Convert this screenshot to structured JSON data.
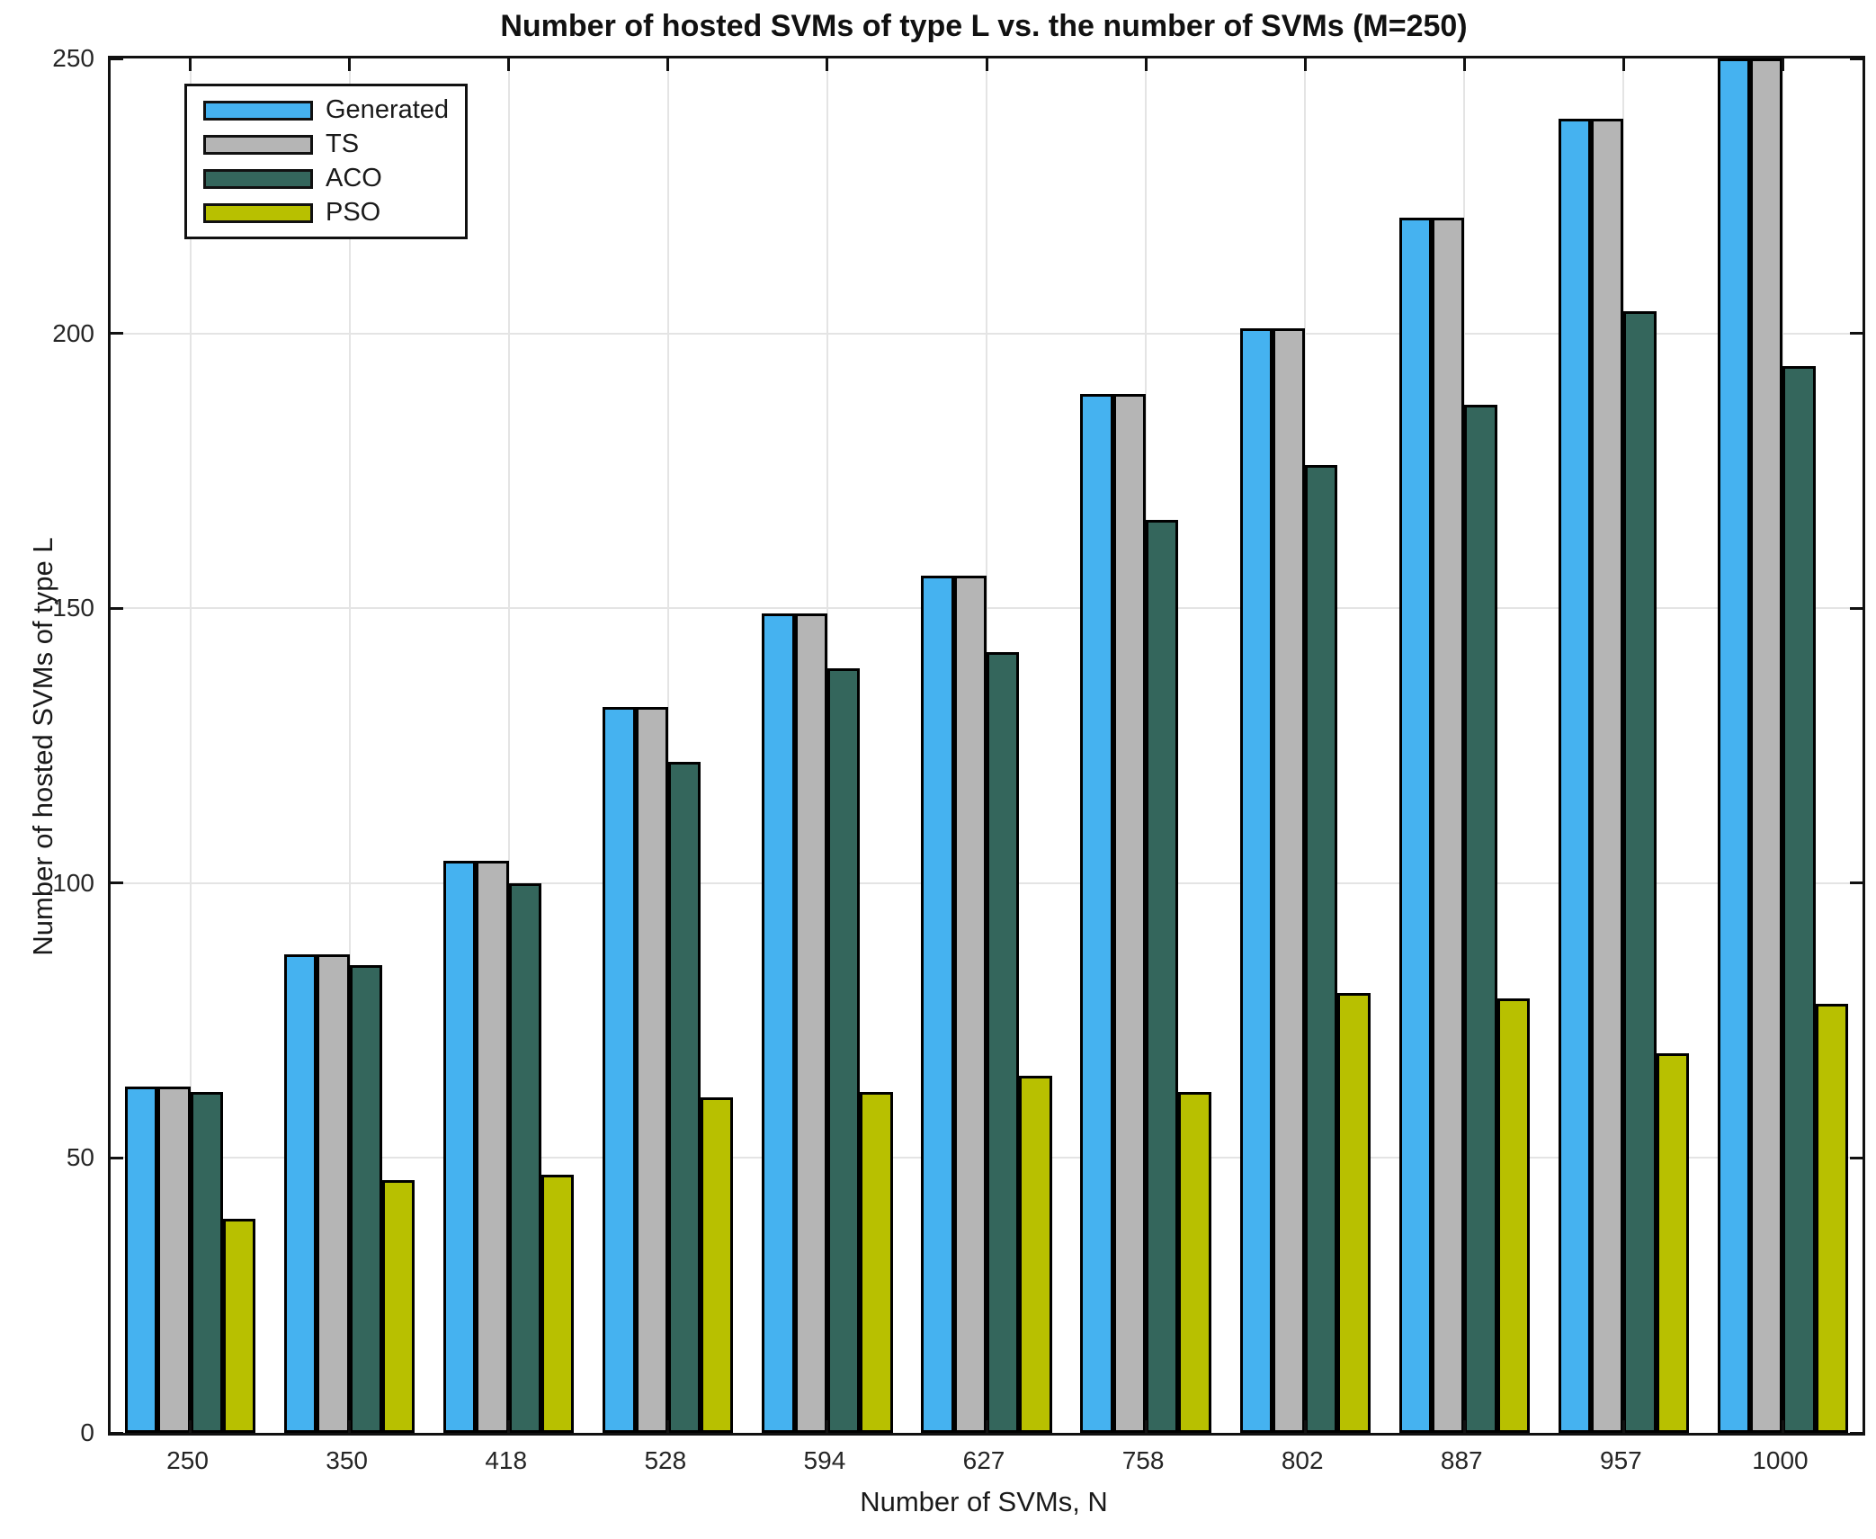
{
  "chart_data": {
    "type": "bar",
    "title": "Number of hosted SVMs of type L vs. the number of SVMs (M=250)",
    "xlabel": "Number of SVMs, N",
    "ylabel": "Number of hosted SVMs of type L",
    "categories": [
      "250",
      "350",
      "418",
      "528",
      "594",
      "627",
      "758",
      "802",
      "887",
      "957",
      "1000"
    ],
    "series": [
      {
        "name": "Generated",
        "color": "#45B2F0",
        "values": [
          63,
          87,
          104,
          132,
          149,
          156,
          189,
          201,
          221,
          239,
          250
        ]
      },
      {
        "name": "TS",
        "color": "#B5B5B5",
        "values": [
          63,
          87,
          104,
          132,
          149,
          156,
          189,
          201,
          221,
          239,
          250
        ]
      },
      {
        "name": "ACO",
        "color": "#34665C",
        "values": [
          62,
          85,
          100,
          122,
          139,
          142,
          166,
          176,
          187,
          204,
          194
        ]
      },
      {
        "name": "PSO",
        "color": "#B8C000",
        "values": [
          39,
          46,
          47,
          61,
          62,
          65,
          62,
          80,
          79,
          69,
          78
        ]
      }
    ],
    "ylim": [
      0,
      250
    ],
    "yticks": [
      0,
      50,
      100,
      150,
      200,
      250
    ],
    "grid": true,
    "box": true,
    "tick_direction": "in",
    "legend_position": "top-left",
    "bar_group_fraction": 0.82,
    "edge_color": "#000000",
    "grid_color": "#e4e4e4",
    "axis_color": "#111111"
  }
}
